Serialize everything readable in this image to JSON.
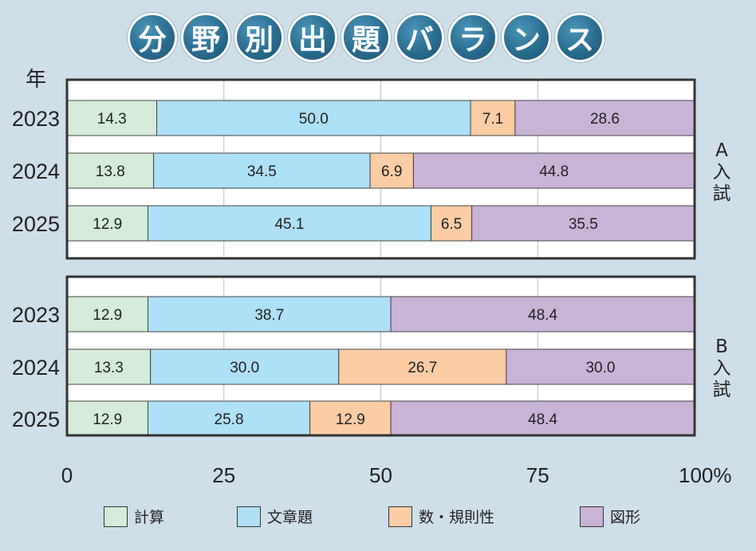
{
  "title": "分野別出題バランス",
  "title_chars": [
    "分",
    "野",
    "別",
    "出",
    "題",
    "バ",
    "ラ",
    "ン",
    "ス"
  ],
  "year_header": "年",
  "x_ticks": [
    "0",
    "25",
    "50",
    "75",
    "100%"
  ],
  "colors": {
    "計算": "#d4ecd9",
    "文章題": "#aee0f7",
    "数・規則性": "#fccca4",
    "図形": "#c9b3d7"
  },
  "legend": [
    {
      "label": "計算",
      "color": "#d4ecd9"
    },
    {
      "label": "文章題",
      "color": "#aee0f7"
    },
    {
      "label": "数・規則性",
      "color": "#fccca4"
    },
    {
      "label": "図形",
      "color": "#c9b3d7"
    }
  ],
  "chart_data": {
    "type": "bar",
    "orientation": "horizontal-stacked-100%",
    "xlim": [
      0,
      100
    ],
    "grid": true,
    "series_names": [
      "計算",
      "文章題",
      "数・規則性",
      "図形"
    ],
    "groups": [
      {
        "label": "A入試",
        "rows": [
          {
            "year": "2023",
            "values": [
              14.3,
              50.0,
              7.1,
              28.6
            ]
          },
          {
            "year": "2024",
            "values": [
              13.8,
              34.5,
              6.9,
              44.8
            ]
          },
          {
            "year": "2025",
            "values": [
              12.9,
              45.1,
              6.5,
              35.5
            ]
          }
        ]
      },
      {
        "label": "B入試",
        "rows": [
          {
            "year": "2023",
            "values": [
              12.9,
              38.7,
              0,
              48.4
            ]
          },
          {
            "year": "2024",
            "values": [
              13.3,
              30.0,
              26.7,
              30.0
            ]
          },
          {
            "year": "2025",
            "values": [
              12.9,
              25.8,
              12.9,
              48.4
            ]
          }
        ]
      }
    ]
  }
}
